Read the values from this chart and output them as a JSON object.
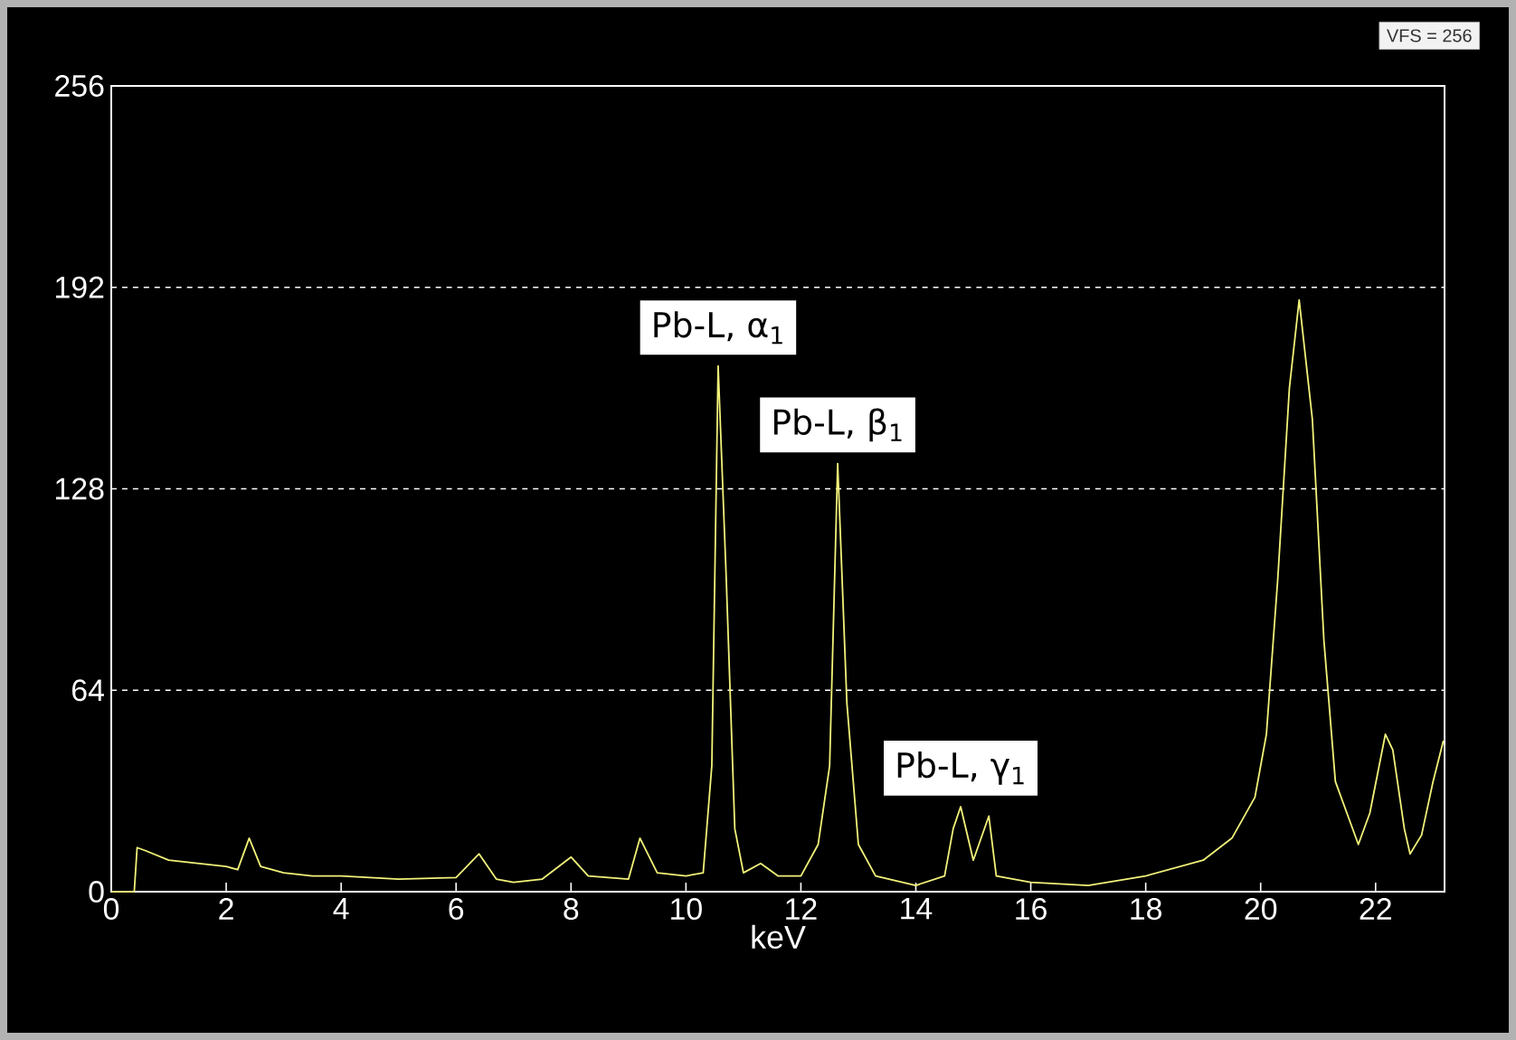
{
  "chart_data": {
    "type": "line",
    "xlabel": "keV",
    "x": [
      0,
      0.4,
      0.45,
      0.6,
      1,
      1.5,
      2,
      2.2,
      2.4,
      2.6,
      3,
      3.5,
      4,
      5,
      6,
      6.4,
      6.7,
      7,
      7.5,
      8,
      8.3,
      9,
      9.2,
      9.5,
      10,
      10.3,
      10.45,
      10.56,
      10.7,
      10.85,
      11,
      11.3,
      11.6,
      12,
      12.3,
      12.5,
      12.64,
      12.8,
      13,
      13.3,
      14,
      14.5,
      14.65,
      14.78,
      15,
      15.27,
      15.4,
      16,
      17,
      18,
      19,
      19.5,
      19.9,
      20.1,
      20.3,
      20.5,
      20.67,
      20.9,
      21.1,
      21.3,
      21.5,
      21.7,
      21.9,
      22.17,
      22.3,
      22.5,
      22.6,
      22.8,
      23.0,
      23.18
    ],
    "series": [
      {
        "color": "#f2f27a",
        "values": [
          0,
          0,
          14,
          13,
          10,
          9,
          8,
          7,
          17,
          8,
          6,
          5,
          5,
          4,
          4.5,
          12,
          4,
          3,
          4,
          11,
          5,
          4,
          17,
          6,
          5,
          6,
          40,
          167,
          100,
          20,
          6,
          9,
          5,
          5,
          15,
          40,
          136,
          60,
          15,
          5,
          2,
          5,
          20,
          27,
          10,
          24,
          5,
          3,
          2,
          5,
          10,
          17,
          30,
          50,
          100,
          160,
          188,
          150,
          80,
          35,
          25,
          15,
          25,
          50,
          45,
          20,
          12,
          18,
          35,
          48
        ]
      }
    ],
    "xlim": [
      0,
      23.2
    ],
    "ylim": [
      0,
      256
    ],
    "xticks": [
      0,
      2,
      4,
      6,
      8,
      10,
      12,
      14,
      16,
      18,
      20,
      22
    ],
    "yticks": [
      0,
      64,
      128,
      192,
      256
    ],
    "grid": "y",
    "line_style": "solid",
    "annotations": [
      {
        "text": "Pb-L, α$_{1}$",
        "x": 10.56,
        "y": 167
      },
      {
        "text": "Pb-L, β$_{1}$",
        "x": 12.64,
        "y": 136
      },
      {
        "text": "Pb-L, γ$_{1}$",
        "x": 14.78,
        "y": 27
      },
      "VFS = 256"
    ]
  }
}
